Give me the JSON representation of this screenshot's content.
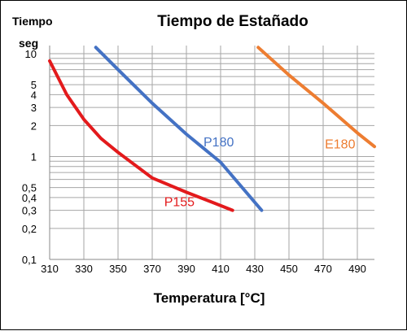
{
  "chart_data": {
    "type": "line",
    "title": "Tiempo de Estañado",
    "ylabel_line1": "Tiempo",
    "ylabel_line2": "seg",
    "xlabel": "Temperatura [°C]",
    "xlim": [
      310,
      500
    ],
    "ylim": [
      0.1,
      12
    ],
    "yscale": "log",
    "grid": true,
    "x_ticks": [
      310,
      330,
      350,
      370,
      390,
      410,
      430,
      450,
      470,
      490
    ],
    "y_tick_labels": [
      {
        "value": 10,
        "label": "10"
      },
      {
        "value": 5,
        "label": "5"
      },
      {
        "value": 4,
        "label": "4"
      },
      {
        "value": 3,
        "label": "3"
      },
      {
        "value": 2,
        "label": "2"
      },
      {
        "value": 1,
        "label": "1"
      },
      {
        "value": 0.5,
        "label": "0,5"
      },
      {
        "value": 0.4,
        "label": "0,4"
      },
      {
        "value": 0.3,
        "label": "0,3"
      },
      {
        "value": 0.2,
        "label": "0,2"
      },
      {
        "value": 0.1,
        "label": "0,1"
      }
    ],
    "y_grid_values": [
      0.2,
      0.3,
      0.4,
      0.5,
      0.6,
      0.7,
      0.8,
      0.9,
      1,
      2,
      3,
      4,
      5,
      6,
      7,
      8,
      9,
      10
    ],
    "series": [
      {
        "name": "P155",
        "color": "#e31a1c",
        "points": [
          [
            310,
            8.5
          ],
          [
            320,
            4.0
          ],
          [
            330,
            2.3
          ],
          [
            340,
            1.5
          ],
          [
            350,
            1.1
          ],
          [
            370,
            0.62
          ],
          [
            390,
            0.45
          ],
          [
            405,
            0.36
          ],
          [
            417,
            0.3
          ]
        ],
        "label_at": [
          377,
          0.33
        ]
      },
      {
        "name": "P180",
        "color": "#4472c4",
        "points": [
          [
            337,
            11.5
          ],
          [
            350,
            7.0
          ],
          [
            370,
            3.3
          ],
          [
            390,
            1.65
          ],
          [
            410,
            0.88
          ],
          [
            434,
            0.3
          ]
        ],
        "label_at": [
          400,
          1.25
        ]
      },
      {
        "name": "E180",
        "color": "#ed7d31",
        "points": [
          [
            432,
            11.5
          ],
          [
            450,
            6.2
          ],
          [
            470,
            3.3
          ],
          [
            490,
            1.7
          ],
          [
            500,
            1.25
          ]
        ],
        "label_at": [
          471,
          1.2
        ]
      }
    ]
  }
}
